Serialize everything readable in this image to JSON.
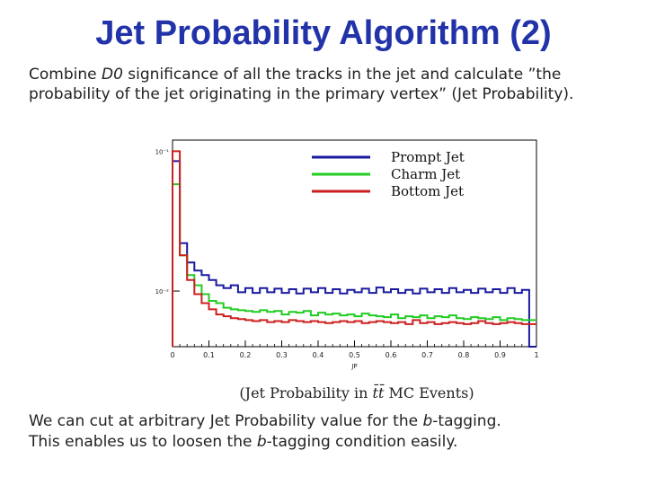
{
  "slide": {
    "title": "Jet Probability Algorithm (2)",
    "intro": {
      "line1_before": "Combine ",
      "line1_math": "D0",
      "line1_after": " significance of all the tracks in the jet and calculate ”the",
      "line2": "probability of the jet originating in the primary vertex” (Jet Probability)."
    },
    "caption": {
      "before": "(Jet Probability in ",
      "math": "t̄t̄",
      "after": " MC Events)"
    },
    "outro": {
      "line1_before": "We can cut at arbitrary Jet Probability value for the ",
      "line1_math": "b",
      "line1_after": "-tagging.",
      "line2_before": "This enables us to loosen the ",
      "line2_math": "b",
      "line2_after": "-tagging condition easily."
    }
  },
  "chart_data": {
    "type": "line",
    "step": true,
    "xlabel": "JP",
    "ylabel": "",
    "xlim": [
      0,
      1
    ],
    "ylim": [
      0.004,
      0.12
    ],
    "log_y": true,
    "x_ticks": [
      "0",
      "0.1",
      "0.2",
      "0.3",
      "0.4",
      "0.5",
      "0.6",
      "0.7",
      "0.8",
      "0.9",
      "1"
    ],
    "y_ticks": [
      {
        "label": "10⁻²",
        "value": 0.01
      },
      {
        "label": "10⁻¹",
        "value": 0.1
      }
    ],
    "legend_position": "top-right",
    "bin_width": 0.02,
    "series": [
      {
        "name": "Prompt Jet",
        "color": "#1a1aa0",
        "values": [
          0.085,
          0.022,
          0.016,
          0.014,
          0.013,
          0.012,
          0.011,
          0.0105,
          0.011,
          0.0098,
          0.0105,
          0.0097,
          0.0105,
          0.0098,
          0.0104,
          0.0097,
          0.0103,
          0.0096,
          0.0104,
          0.0098,
          0.0105,
          0.0097,
          0.0103,
          0.0096,
          0.0102,
          0.0098,
          0.0104,
          0.0097,
          0.0106,
          0.0098,
          0.0103,
          0.0097,
          0.0102,
          0.0096,
          0.0104,
          0.0098,
          0.0103,
          0.0097,
          0.0105,
          0.0098,
          0.0102,
          0.0097,
          0.0104,
          0.0098,
          0.0103,
          0.0097,
          0.0105,
          0.0097,
          0.0102,
          0.004
        ]
      },
      {
        "name": "Charm Jet",
        "color": "#22cc22",
        "values": [
          0.058,
          0.018,
          0.013,
          0.011,
          0.0095,
          0.0085,
          0.0082,
          0.0076,
          0.0074,
          0.0073,
          0.0072,
          0.0071,
          0.0073,
          0.0071,
          0.0072,
          0.0068,
          0.0071,
          0.007,
          0.0072,
          0.0067,
          0.007,
          0.0068,
          0.0069,
          0.0067,
          0.0068,
          0.0066,
          0.0069,
          0.0067,
          0.0066,
          0.0065,
          0.0068,
          0.0064,
          0.0066,
          0.0065,
          0.0067,
          0.0064,
          0.0066,
          0.0065,
          0.0067,
          0.0064,
          0.0063,
          0.0065,
          0.0064,
          0.0063,
          0.0065,
          0.0062,
          0.0064,
          0.0063,
          0.0062,
          0.0062
        ]
      },
      {
        "name": "Bottom Jet",
        "color": "#cc2020",
        "values": [
          0.1,
          0.018,
          0.012,
          0.0095,
          0.0082,
          0.0074,
          0.0068,
          0.0066,
          0.0064,
          0.0063,
          0.0062,
          0.0061,
          0.0062,
          0.006,
          0.0061,
          0.006,
          0.0062,
          0.0061,
          0.006,
          0.0061,
          0.006,
          0.0059,
          0.006,
          0.0061,
          0.006,
          0.0061,
          0.0059,
          0.006,
          0.0061,
          0.006,
          0.0059,
          0.006,
          0.0058,
          0.0062,
          0.0059,
          0.006,
          0.0058,
          0.0059,
          0.006,
          0.0059,
          0.0058,
          0.0059,
          0.0061,
          0.0059,
          0.0058,
          0.0059,
          0.006,
          0.0059,
          0.0058,
          0.0058
        ]
      }
    ]
  }
}
